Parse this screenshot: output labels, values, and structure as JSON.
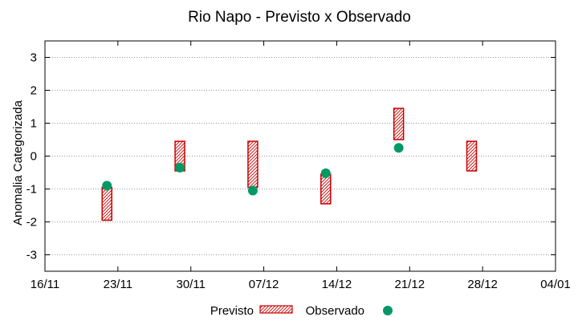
{
  "chart_data": {
    "type": "floating-bar-with-points",
    "title": "Rio Napo - Previsto x Observado",
    "xlabel": "",
    "ylabel": "Anomalia Categorizada",
    "ylim": [
      -3.5,
      3.5
    ],
    "yticks": [
      -3,
      -2,
      -1,
      0,
      1,
      2,
      3
    ],
    "xlim": [
      0,
      7
    ],
    "xticks": [
      {
        "x": 0,
        "label": "16/11"
      },
      {
        "x": 1,
        "label": "23/11"
      },
      {
        "x": 2,
        "label": "30/11"
      },
      {
        "x": 3,
        "label": "07/12"
      },
      {
        "x": 4,
        "label": "14/12"
      },
      {
        "x": 5,
        "label": "21/12"
      },
      {
        "x": 6,
        "label": "28/12"
      },
      {
        "x": 7,
        "label": "04/01"
      }
    ],
    "grid": "horizontal-dotted",
    "series": [
      {
        "name": "Previsto",
        "kind": "range-bar",
        "color": "#cc0000",
        "points": [
          {
            "x": 0.85,
            "low": -1.95,
            "high": -0.95
          },
          {
            "x": 1.85,
            "low": -0.45,
            "high": 0.45
          },
          {
            "x": 2.85,
            "low": -0.95,
            "high": 0.45
          },
          {
            "x": 3.85,
            "low": -1.45,
            "high": -0.55
          },
          {
            "x": 4.85,
            "low": 0.5,
            "high": 1.45
          },
          {
            "x": 5.85,
            "low": -0.45,
            "high": 0.45
          }
        ]
      },
      {
        "name": "Observado",
        "kind": "point",
        "color": "#009966",
        "points": [
          {
            "x": 0.85,
            "y": -0.9
          },
          {
            "x": 1.85,
            "y": -0.35
          },
          {
            "x": 2.85,
            "y": -1.05
          },
          {
            "x": 3.85,
            "y": -0.52
          },
          {
            "x": 4.85,
            "y": 0.25
          }
        ]
      }
    ],
    "legend": {
      "placement": "bottom-center",
      "entries": [
        "Previsto",
        "Observado"
      ]
    }
  }
}
